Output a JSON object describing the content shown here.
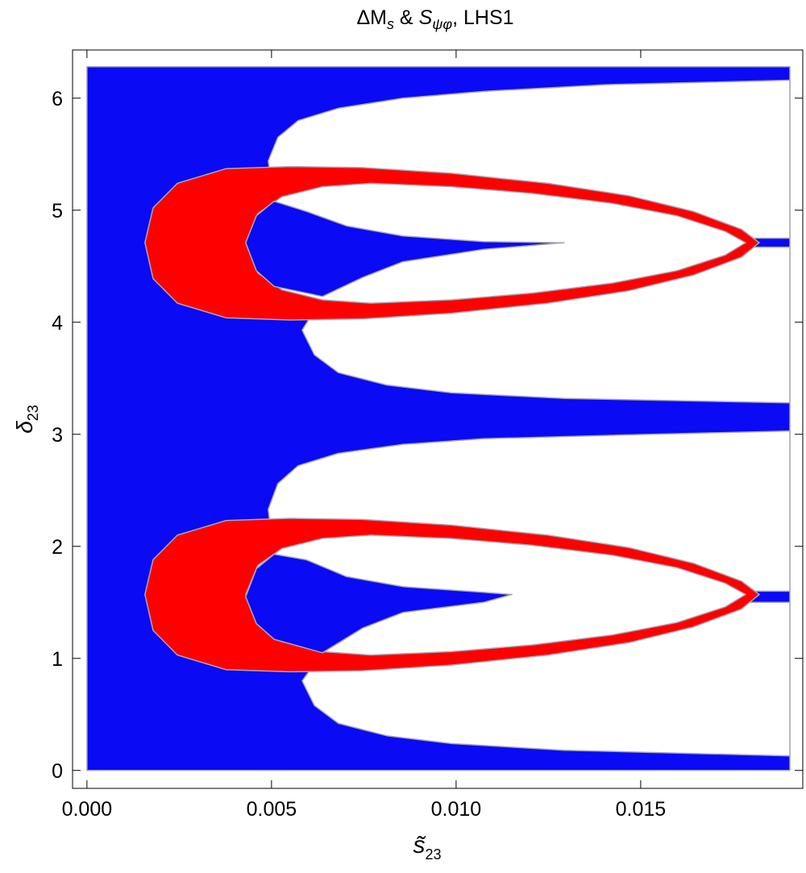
{
  "chart_data": {
    "type": "region",
    "title": [
      "ΔM",
      "s",
      " & ",
      "S",
      "ψφ",
      ", LHS1"
    ],
    "xlabel": [
      "s̃",
      "23"
    ],
    "ylabel": [
      "δ",
      "23"
    ],
    "xlim": [
      -0.00039,
      0.01939
    ],
    "ylim": [
      -0.16,
      6.43
    ],
    "xticks": [
      {
        "value": 0,
        "label": "0.000"
      },
      {
        "value": 0.005,
        "label": "0.005"
      },
      {
        "value": 0.01,
        "label": "0.010"
      },
      {
        "value": 0.015,
        "label": "0.015"
      }
    ],
    "yticks": [
      0,
      1,
      2,
      3,
      4,
      5,
      6
    ],
    "grid": false,
    "regions": [
      {
        "color": "#0a0af5",
        "x": [
          0,
          0.01904,
          0.01904,
          0
        ],
        "y": [
          0,
          0,
          6.28,
          6.28
        ]
      },
      {
        "color": "#ffffff",
        "x": [
          0.00491,
          0.00517,
          0.00572,
          0.00681,
          0.00856,
          0.01074,
          0.01402,
          0.01904,
          0.01904,
          0.0175,
          0.01293,
          0.01074,
          0.00856,
          0.00703,
          0.00594,
          0.00528,
          0.00495
        ],
        "y": [
          5.44,
          5.65,
          5.8,
          5.91,
          6.0,
          6.06,
          6.12,
          6.16,
          4.75,
          4.75,
          4.71,
          4.72,
          4.77,
          4.86,
          4.99,
          5.17,
          5.35
        ]
      },
      {
        "color": "#ffffff",
        "x": [
          0.006,
          0.00583,
          0.00616,
          0.00681,
          0.00812,
          0.00987,
          0.01293,
          0.01904,
          0.01904,
          0.0175,
          0.01293,
          0.01074,
          0.00856,
          0.00747,
          0.00638
        ],
        "y": [
          4.02,
          3.93,
          3.71,
          3.55,
          3.44,
          3.37,
          3.32,
          3.28,
          4.67,
          4.67,
          4.71,
          4.65,
          4.54,
          4.4,
          4.14
        ]
      },
      {
        "color": "#ffffff",
        "x": [
          0.00491,
          0.00517,
          0.00572,
          0.00681,
          0.00856,
          0.01074,
          0.01402,
          0.01904,
          0.01904,
          0.01522,
          0.01522,
          0.01904,
          0.01904,
          0.01293,
          0.00987,
          0.00812,
          0.00681,
          0.00616,
          0.00583,
          0.00638,
          0.00747,
          0.00856,
          0.01074,
          0.01151,
          0.01074,
          0.00856,
          0.00703,
          0.00594,
          0.00528,
          0.00495
        ],
        "y": [
          2.33,
          2.56,
          2.72,
          2.83,
          2.91,
          2.96,
          2.99,
          3.03,
          1.6,
          1.6,
          1.5,
          1.5,
          0.13,
          0.18,
          0.24,
          0.31,
          0.42,
          0.58,
          0.8,
          1.05,
          1.27,
          1.41,
          1.5,
          1.57,
          1.59,
          1.64,
          1.73,
          1.88,
          2.06,
          2.22
        ]
      },
      {
        "color": "#ff0000",
        "x": [
          0.01821,
          0.01773,
          0.01642,
          0.01467,
          0.01249,
          0.00987,
          0.00747,
          0.0055,
          0.00376,
          0.00245,
          0.00179,
          0.00157,
          0.00179,
          0.00245,
          0.00376,
          0.0055,
          0.00747,
          0.00987,
          0.01249,
          0.01467,
          0.01642,
          0.01773
        ],
        "y": [
          4.71,
          4.83,
          4.99,
          5.13,
          5.24,
          5.33,
          5.38,
          5.39,
          5.37,
          5.24,
          5.02,
          4.71,
          4.39,
          4.17,
          4.04,
          4.02,
          4.03,
          4.08,
          4.17,
          4.28,
          4.42,
          4.58
        ]
      },
      {
        "color": "#ffffff",
        "x": [
          0.01784,
          0.01729,
          0.01598,
          0.01424,
          0.01205,
          0.00987,
          0.00769,
          0.00638,
          0.00528,
          0.00463,
          0.0043,
          0.00463,
          0.00528,
          0.00638,
          0.00769,
          0.00987,
          0.01205,
          0.01424,
          0.01598,
          0.01729
        ],
        "y": [
          4.71,
          4.81,
          4.95,
          5.06,
          5.15,
          5.21,
          5.24,
          5.21,
          5.12,
          4.97,
          4.71,
          4.44,
          4.29,
          4.2,
          4.17,
          4.2,
          4.26,
          4.35,
          4.46,
          4.6
        ]
      },
      {
        "color": "#0a0af5",
        "x": [
          0.0043,
          0.00459,
          0.00507,
          0.00594,
          0.00703,
          0.00856,
          0.01074,
          0.01293,
          0.01074,
          0.00856,
          0.00747,
          0.00638,
          0.00507,
          0.00459
        ],
        "y": [
          4.71,
          4.95,
          5.08,
          4.99,
          4.86,
          4.77,
          4.72,
          4.71,
          4.65,
          4.54,
          4.4,
          4.23,
          4.32,
          4.46
        ]
      },
      {
        "color": "#ff0000",
        "x": [
          0.01821,
          0.01773,
          0.01642,
          0.01467,
          0.01249,
          0.00987,
          0.00747,
          0.0055,
          0.00376,
          0.00245,
          0.00179,
          0.00157,
          0.00179,
          0.00245,
          0.00376,
          0.0055,
          0.00747,
          0.00987,
          0.01249,
          0.01467,
          0.01642,
          0.01773
        ],
        "y": [
          1.57,
          1.69,
          1.85,
          1.99,
          2.1,
          2.19,
          2.24,
          2.25,
          2.23,
          2.1,
          1.88,
          1.57,
          1.25,
          1.03,
          0.9,
          0.88,
          0.89,
          0.94,
          1.03,
          1.14,
          1.28,
          1.44
        ]
      },
      {
        "color": "#ffffff",
        "x": [
          0.01784,
          0.01729,
          0.01598,
          0.01424,
          0.01205,
          0.00987,
          0.00769,
          0.00638,
          0.00528,
          0.00463,
          0.0043,
          0.00463,
          0.00528,
          0.00638,
          0.00769,
          0.00987,
          0.01205,
          0.01424,
          0.01598,
          0.01729
        ],
        "y": [
          1.57,
          1.67,
          1.81,
          1.92,
          2.01,
          2.07,
          2.1,
          2.07,
          1.98,
          1.83,
          1.57,
          1.3,
          1.15,
          1.06,
          1.03,
          1.06,
          1.12,
          1.21,
          1.32,
          1.46
        ]
      },
      {
        "color": "#0a0af5",
        "x": [
          0.0043,
          0.00459,
          0.00507,
          0.00594,
          0.00703,
          0.00856,
          0.01074,
          0.01151,
          0.01074,
          0.00856,
          0.00747,
          0.00638,
          0.00507,
          0.00459
        ],
        "y": [
          1.55,
          1.8,
          1.93,
          1.88,
          1.73,
          1.64,
          1.59,
          1.57,
          1.5,
          1.41,
          1.27,
          1.05,
          1.17,
          1.31
        ]
      }
    ]
  }
}
